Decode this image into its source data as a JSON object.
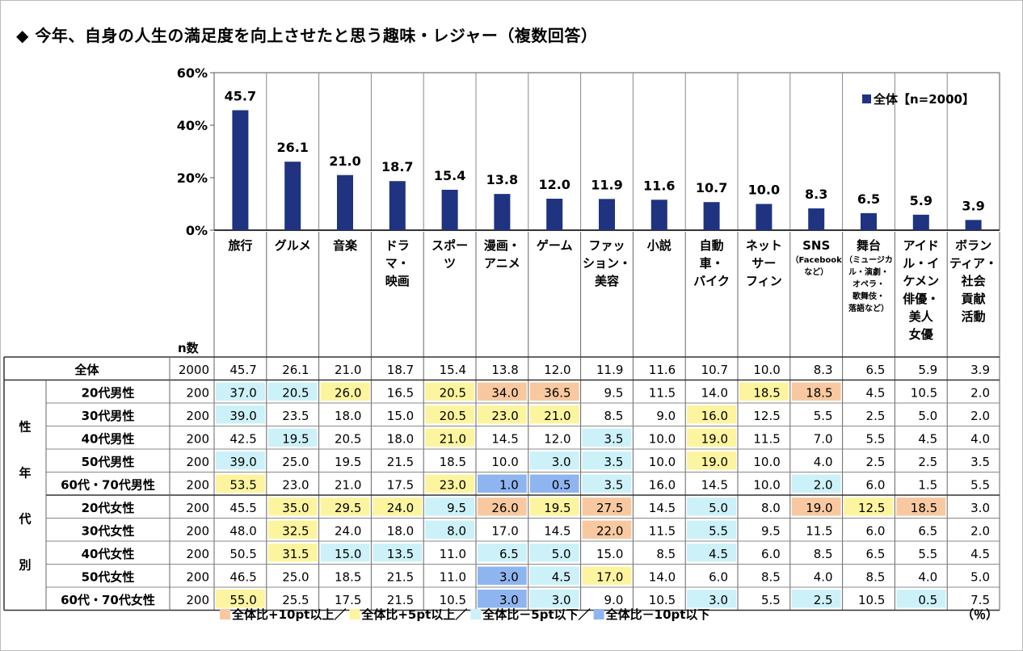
{
  "title": "◆ 今年、自身の人生の満足度を向上させたと思う趣味・レジャー（複数回答）",
  "chart_data": {
    "type": "bar",
    "legend": "全体【n=2000】",
    "legend_placement": "top-right",
    "ylim": [
      0,
      60
    ],
    "yticks": [
      "0%",
      "20%",
      "40%",
      "60%"
    ],
    "categories": [
      [
        "旅行"
      ],
      [
        "グルメ"
      ],
      [
        "音楽"
      ],
      [
        "ドラ",
        "マ・",
        "映画"
      ],
      [
        "スポー",
        "ツ"
      ],
      [
        "漫画・",
        "アニメ"
      ],
      [
        "ゲーム"
      ],
      [
        "ファッ",
        "ション・",
        "美容"
      ],
      [
        "小説"
      ],
      [
        "自動",
        "車・",
        "バイク"
      ],
      [
        "ネット",
        "サー",
        "フィン"
      ],
      [
        "SNS"
      ],
      [
        "舞台"
      ],
      [
        "アイド",
        "ル・イ",
        "ケメン",
        "俳優・",
        "美人",
        "女優"
      ],
      [
        "ボラン",
        "ティア・",
        "社会",
        "貢献",
        "活動"
      ]
    ],
    "category_notes": [
      [],
      [],
      [],
      [],
      [],
      [],
      [],
      [],
      [],
      [],
      [],
      [
        "（Facebook",
        "など）"
      ],
      [
        "（ミュージカ",
        "ル・演劇・",
        "オペラ・",
        "歌舞伎・",
        "落語など）"
      ],
      [],
      []
    ],
    "values": [
      45.7,
      26.1,
      21.0,
      18.7,
      15.4,
      13.8,
      12.0,
      11.9,
      11.6,
      10.7,
      10.0,
      8.3,
      6.5,
      5.9,
      3.9
    ]
  },
  "table": {
    "n_header": "n数",
    "group_label": [
      "性",
      "年",
      "代",
      "別"
    ],
    "total_row": {
      "label": "全体",
      "n": "2000",
      "values": [
        "45.7",
        "26.1",
        "21.0",
        "18.7",
        "15.4",
        "13.8",
        "12.0",
        "11.9",
        "11.6",
        "10.7",
        "10.0",
        "8.3",
        "6.5",
        "5.9",
        "3.9"
      ]
    },
    "rows": [
      {
        "label": "20代男性",
        "n": "200",
        "values": [
          "37.0",
          "20.5",
          "26.0",
          "16.5",
          "20.5",
          "34.0",
          "36.5",
          "9.5",
          "11.5",
          "14.0",
          "18.5",
          "18.5",
          "4.5",
          "10.5",
          "2.0"
        ]
      },
      {
        "label": "30代男性",
        "n": "200",
        "values": [
          "39.0",
          "23.5",
          "18.0",
          "15.0",
          "20.5",
          "23.0",
          "21.0",
          "8.5",
          "9.0",
          "16.0",
          "12.5",
          "5.5",
          "2.5",
          "5.0",
          "2.0"
        ]
      },
      {
        "label": "40代男性",
        "n": "200",
        "values": [
          "42.5",
          "19.5",
          "20.5",
          "18.0",
          "21.0",
          "14.5",
          "12.0",
          "3.5",
          "10.0",
          "19.0",
          "11.5",
          "7.0",
          "5.5",
          "4.5",
          "4.0"
        ]
      },
      {
        "label": "50代男性",
        "n": "200",
        "values": [
          "39.0",
          "25.0",
          "19.5",
          "21.5",
          "18.5",
          "10.0",
          "3.0",
          "3.5",
          "10.0",
          "19.0",
          "10.0",
          "4.0",
          "2.5",
          "2.5",
          "3.5"
        ]
      },
      {
        "label": "60代・70代男性",
        "n": "200",
        "values": [
          "53.5",
          "23.0",
          "21.0",
          "17.5",
          "23.0",
          "1.0",
          "0.5",
          "3.5",
          "16.0",
          "14.5",
          "10.0",
          "2.0",
          "6.0",
          "1.5",
          "5.5"
        ]
      },
      {
        "label": "20代女性",
        "n": "200",
        "values": [
          "45.5",
          "35.0",
          "29.5",
          "24.0",
          "9.5",
          "26.0",
          "19.5",
          "27.5",
          "14.5",
          "5.0",
          "8.0",
          "19.0",
          "12.5",
          "18.5",
          "3.0"
        ]
      },
      {
        "label": "30代女性",
        "n": "200",
        "values": [
          "48.0",
          "32.5",
          "24.0",
          "18.0",
          "8.0",
          "17.0",
          "14.5",
          "22.0",
          "11.5",
          "5.5",
          "9.5",
          "11.5",
          "6.0",
          "6.5",
          "2.0"
        ]
      },
      {
        "label": "40代女性",
        "n": "200",
        "values": [
          "50.5",
          "31.5",
          "15.0",
          "13.5",
          "11.0",
          "6.5",
          "5.0",
          "15.0",
          "8.5",
          "4.5",
          "6.0",
          "8.5",
          "6.5",
          "5.5",
          "4.5"
        ]
      },
      {
        "label": "50代女性",
        "n": "200",
        "values": [
          "46.5",
          "25.0",
          "18.5",
          "21.5",
          "11.0",
          "3.0",
          "4.5",
          "17.0",
          "14.0",
          "6.0",
          "8.5",
          "4.0",
          "8.5",
          "4.0",
          "5.0"
        ]
      },
      {
        "label": "60代・70代女性",
        "n": "200",
        "values": [
          "55.0",
          "25.5",
          "17.5",
          "21.5",
          "10.5",
          "3.0",
          "3.0",
          "9.0",
          "10.5",
          "3.0",
          "5.5",
          "2.5",
          "10.5",
          "0.5",
          "7.5"
        ]
      }
    ]
  },
  "colors": {
    "bar": "#1f3380",
    "plus10": "#f8c9a0",
    "plus5": "#fdf4a0",
    "minus5": "#cdf1f8",
    "minus10": "#8fb5f0"
  },
  "footer_legend": [
    {
      "text": "全体比+10pt以上／",
      "color_key": "plus10"
    },
    {
      "text": "全体比+5pt以上／",
      "color_key": "plus5"
    },
    {
      "text": "全体比－5pt以下／",
      "color_key": "minus5"
    },
    {
      "text": "全体比－10pt以下",
      "color_key": "minus10"
    }
  ],
  "unit_note": "（％）"
}
